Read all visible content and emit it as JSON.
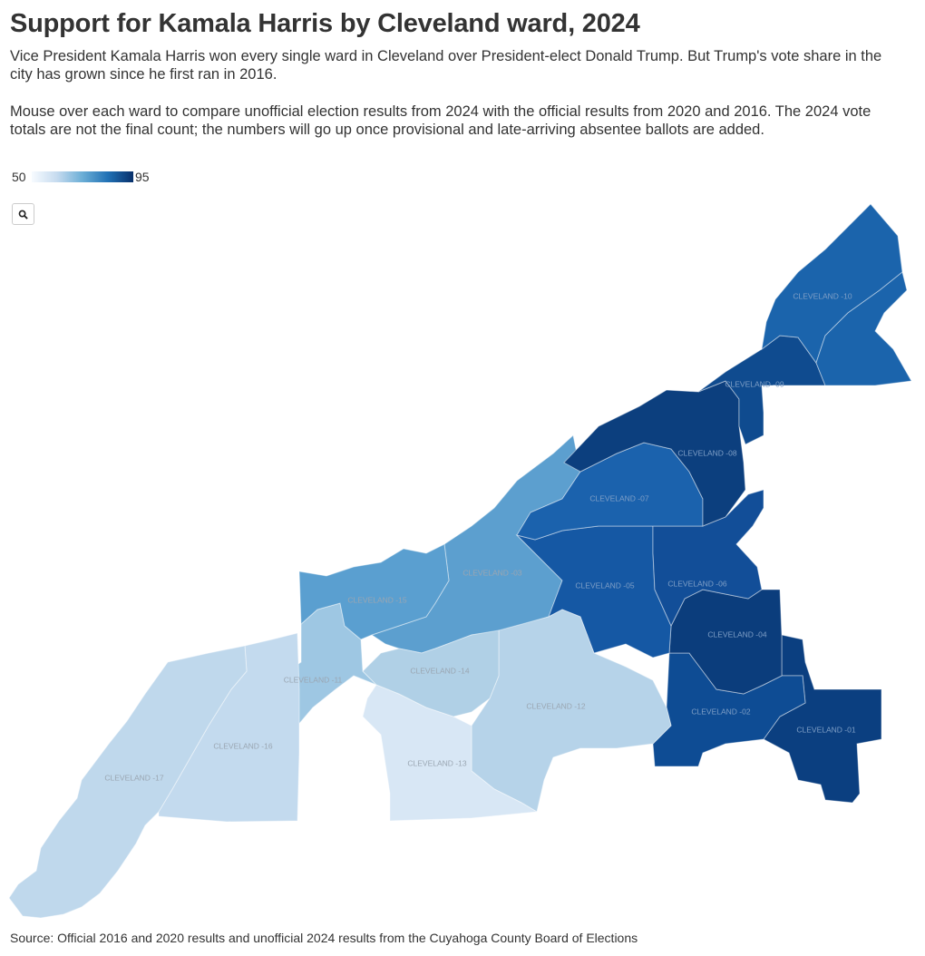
{
  "header": {
    "title": "Support for Kamala Harris by Cleveland ward, 2024",
    "description_1": "Vice President Kamala Harris won every single ward in Cleveland over President-elect Donald Trump. But Trump's vote share in the city has grown since he first ran in 2016.",
    "description_2": "Mouse over each ward to compare unofficial election results from 2024 with the official results from 2020 and 2016. The 2024 vote totals are not the final count; the numbers will go up once provisional and late-arriving absentee ballots are added."
  },
  "legend": {
    "min_label": "50",
    "max_label": "95",
    "color_min": "#f7fbff",
    "color_max": "#08306b"
  },
  "controls": {
    "zoom_icon": "search-icon"
  },
  "map": {
    "wards": [
      {
        "id": "01",
        "label": "CLEVELAND -01",
        "color": "#0b3f80"
      },
      {
        "id": "02",
        "label": "CLEVELAND -02",
        "color": "#0e4c94"
      },
      {
        "id": "03",
        "label": "CLEVELAND -03",
        "color": "#5c9fcf"
      },
      {
        "id": "04",
        "label": "CLEVELAND -04",
        "color": "#0b3d7c"
      },
      {
        "id": "05",
        "label": "CLEVELAND -05",
        "color": "#1558a4"
      },
      {
        "id": "06",
        "label": "CLEVELAND -06",
        "color": "#124e98"
      },
      {
        "id": "07",
        "label": "CLEVELAND -07",
        "color": "#1b62ad"
      },
      {
        "id": "08",
        "label": "CLEVELAND -08",
        "color": "#0c3f7e"
      },
      {
        "id": "09",
        "label": "CLEVELAND -09",
        "color": "#0f4b8f"
      },
      {
        "id": "10",
        "label": "CLEVELAND -10",
        "color": "#1b64ac"
      },
      {
        "id": "11",
        "label": "CLEVELAND -11",
        "color": "#9ec7e3"
      },
      {
        "id": "12",
        "label": "CLEVELAND -12",
        "color": "#b6d3e9"
      },
      {
        "id": "13",
        "label": "CLEVELAND -13",
        "color": "#d8e7f5"
      },
      {
        "id": "14",
        "label": "CLEVELAND -14",
        "color": "#b0d0e6"
      },
      {
        "id": "15",
        "label": "CLEVELAND -15",
        "color": "#5a9fd0"
      },
      {
        "id": "16",
        "label": "CLEVELAND -16",
        "color": "#c3daee"
      },
      {
        "id": "17",
        "label": "CLEVELAND -17",
        "color": "#bfd8ec"
      }
    ]
  },
  "footer": {
    "source": "Source: Official 2016 and 2020 results and unofficial 2024 results from the Cuyahoga County Board of Elections"
  }
}
